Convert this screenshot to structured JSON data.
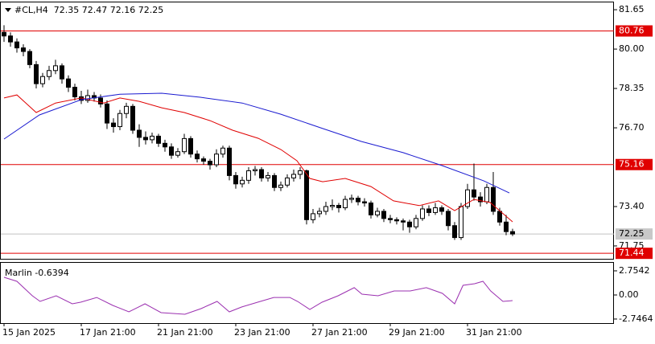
{
  "chart_data": {
    "type": "candlestick",
    "title": "#CL,H4  72.35 72.47 72.16 72.25",
    "xlim": [
      -0.625,
      94.75
    ],
    "ylim": [
      71.21,
      81.99
    ],
    "yticks": [
      81.65,
      {
        "value": 80,
        "label": "80.00"
      },
      78.35,
      {
        "value": 76.7,
        "label": "76.70"
      },
      {
        "value": 73.4,
        "label": "73.40"
      },
      71.75
    ],
    "xticks": [
      {
        "value": 0,
        "label": "15 Jan 2025"
      },
      {
        "value": 12,
        "label": "17 Jan 21:00"
      },
      {
        "value": 24,
        "label": "21 Jan 21:00"
      },
      {
        "value": 36,
        "label": "23 Jan 21:00"
      },
      {
        "value": 48,
        "label": "27 Jan 21:00"
      },
      {
        "value": 60,
        "label": "29 Jan 21:00"
      },
      {
        "value": 72,
        "label": "31 Jan 21:00"
      }
    ],
    "levels": [
      80.76,
      75.16,
      71.44
    ],
    "level_color": "#e00000",
    "last_price": 72.25,
    "candles": [
      [
        80.7,
        81.0,
        80.3,
        80.55
      ],
      [
        80.55,
        80.7,
        80.1,
        80.3
      ],
      [
        80.3,
        80.45,
        79.85,
        80.05
      ],
      [
        80.05,
        80.2,
        79.7,
        79.9
      ],
      [
        79.9,
        80.0,
        79.2,
        79.35
      ],
      [
        79.35,
        79.5,
        78.35,
        78.55
      ],
      [
        78.55,
        79.0,
        78.4,
        78.85
      ],
      [
        78.85,
        79.3,
        78.7,
        79.1
      ],
      [
        79.1,
        79.55,
        78.95,
        79.3
      ],
      [
        79.3,
        79.4,
        78.55,
        78.75
      ],
      [
        78.75,
        78.9,
        78.2,
        78.4
      ],
      [
        78.4,
        78.55,
        77.85,
        78.0
      ],
      [
        78.0,
        78.25,
        77.7,
        77.85
      ],
      [
        77.85,
        78.3,
        77.75,
        78.05
      ],
      [
        78.05,
        78.2,
        77.8,
        77.95
      ],
      [
        77.95,
        78.1,
        77.55,
        77.7
      ],
      [
        77.7,
        77.85,
        76.65,
        76.9
      ],
      [
        76.9,
        77.1,
        76.5,
        76.75
      ],
      [
        76.75,
        77.45,
        76.6,
        77.3
      ],
      [
        77.3,
        77.75,
        77.1,
        77.6
      ],
      [
        77.6,
        77.7,
        76.45,
        76.6
      ],
      [
        76.6,
        76.85,
        75.9,
        76.3
      ],
      [
        76.3,
        76.55,
        76.0,
        76.2
      ],
      [
        76.2,
        76.5,
        76.05,
        76.35
      ],
      [
        76.35,
        76.45,
        75.9,
        76.05
      ],
      [
        76.05,
        76.2,
        75.7,
        75.9
      ],
      [
        75.9,
        76.05,
        75.4,
        75.55
      ],
      [
        75.55,
        75.85,
        75.45,
        75.7
      ],
      [
        75.7,
        76.45,
        75.6,
        76.25
      ],
      [
        76.25,
        76.35,
        75.45,
        75.6
      ],
      [
        75.6,
        75.75,
        75.25,
        75.4
      ],
      [
        75.4,
        75.5,
        75.15,
        75.3
      ],
      [
        75.3,
        75.4,
        74.95,
        75.15
      ],
      [
        75.15,
        75.8,
        75.05,
        75.6
      ],
      [
        75.6,
        75.95,
        75.45,
        75.85
      ],
      [
        75.85,
        75.95,
        74.5,
        74.7
      ],
      [
        74.7,
        74.85,
        74.15,
        74.35
      ],
      [
        74.35,
        74.65,
        74.2,
        74.5
      ],
      [
        74.5,
        75.05,
        74.35,
        74.9
      ],
      [
        74.9,
        75.1,
        74.7,
        74.95
      ],
      [
        74.95,
        75.05,
        74.45,
        74.6
      ],
      [
        74.6,
        74.85,
        74.45,
        74.7
      ],
      [
        74.7,
        74.8,
        74.05,
        74.2
      ],
      [
        74.2,
        74.45,
        74.05,
        74.3
      ],
      [
        74.3,
        74.75,
        74.2,
        74.6
      ],
      [
        74.6,
        74.95,
        74.45,
        74.75
      ],
      [
        74.75,
        75.05,
        74.55,
        74.9
      ],
      [
        74.9,
        74.95,
        72.65,
        72.85
      ],
      [
        72.85,
        73.3,
        72.7,
        73.1
      ],
      [
        73.1,
        73.35,
        72.95,
        73.2
      ],
      [
        73.2,
        73.6,
        73.05,
        73.4
      ],
      [
        73.4,
        73.7,
        73.25,
        73.45
      ],
      [
        73.45,
        73.55,
        73.15,
        73.35
      ],
      [
        73.35,
        73.85,
        73.25,
        73.7
      ],
      [
        73.7,
        73.9,
        73.55,
        73.75
      ],
      [
        73.75,
        73.85,
        73.45,
        73.6
      ],
      [
        73.6,
        73.75,
        73.4,
        73.55
      ],
      [
        73.55,
        73.65,
        72.9,
        73.05
      ],
      [
        73.05,
        73.35,
        72.95,
        73.2
      ],
      [
        73.2,
        73.3,
        72.75,
        72.9
      ],
      [
        72.9,
        73.05,
        72.7,
        72.85
      ],
      [
        72.85,
        72.95,
        72.65,
        72.8
      ],
      [
        72.8,
        72.9,
        72.4,
        72.75
      ],
      [
        72.75,
        72.85,
        72.3,
        72.55
      ],
      [
        72.55,
        73.05,
        72.45,
        72.9
      ],
      [
        72.9,
        73.45,
        72.8,
        73.3
      ],
      [
        73.3,
        73.45,
        73.0,
        73.15
      ],
      [
        73.15,
        73.55,
        73.05,
        73.35
      ],
      [
        73.35,
        73.45,
        73.05,
        73.2
      ],
      [
        73.2,
        73.3,
        72.4,
        72.6
      ],
      [
        72.6,
        72.75,
        72.0,
        72.1
      ],
      [
        72.1,
        73.55,
        72.0,
        73.4
      ],
      [
        73.4,
        74.35,
        73.3,
        74.1
      ],
      [
        74.1,
        75.2,
        73.65,
        73.8
      ],
      [
        73.8,
        74.0,
        73.4,
        73.6
      ],
      [
        73.6,
        74.35,
        73.5,
        74.2
      ],
      [
        74.2,
        74.85,
        73.05,
        73.2
      ],
      [
        73.2,
        73.35,
        72.6,
        72.75
      ],
      [
        72.75,
        73.05,
        72.2,
        72.35
      ],
      [
        72.35,
        72.47,
        72.16,
        72.25
      ]
    ],
    "lines": [
      {
        "color": "#e00000",
        "x": [
          0,
          2,
          5,
          8,
          12,
          15.5,
          18,
          21,
          24.5,
          28,
          32,
          35.5,
          39.5,
          43,
          45.5,
          47.5,
          49.5,
          53,
          57,
          60.5,
          64.5,
          67.5,
          70,
          73,
          75.5,
          79
        ],
        "values": [
          77.95,
          78.08,
          77.34,
          77.74,
          77.95,
          77.74,
          77.95,
          77.81,
          77.54,
          77.34,
          77.0,
          76.6,
          76.26,
          75.79,
          75.32,
          74.58,
          74.44,
          74.58,
          74.24,
          73.64,
          73.44,
          73.64,
          73.23,
          73.7,
          73.57,
          72.76
        ]
      },
      {
        "color": "#1a1ad0",
        "x": [
          0,
          5.5,
          12,
          18,
          24.5,
          30.5,
          37,
          43,
          49.5,
          55.5,
          62,
          68,
          74.5,
          78.5
        ],
        "values": [
          76.23,
          77.24,
          77.88,
          78.11,
          78.15,
          77.98,
          77.74,
          77.27,
          76.67,
          76.13,
          75.66,
          75.12,
          74.48,
          73.97
        ]
      }
    ],
    "oscillator": {
      "label": "Marlin -0.6394",
      "color": "#9b30b0",
      "ylim": [
        -3.21,
        3.76
      ],
      "yticks": [
        2.7542,
        {
          "value": 0,
          "label": "0.00"
        },
        -2.7464
      ],
      "x": [
        0,
        2,
        4.4,
        5.6,
        8.1,
        10.6,
        11.9,
        14.4,
        16.9,
        19.4,
        21.9,
        24.4,
        28.1,
        30.6,
        33.1,
        35,
        36.9,
        39.4,
        41.9,
        44.4,
        45.6,
        47.5,
        49.4,
        51.9,
        54.4,
        55.6,
        58.1,
        60.6,
        63.1,
        65.6,
        68.1,
        70,
        71.3,
        73.1,
        74.4,
        75.6,
        77.5,
        79
      ],
      "values": [
        2.02,
        1.56,
        -0.09,
        -0.73,
        -0.09,
        -1.01,
        -0.83,
        -0.28,
        -1.19,
        -1.93,
        -1.01,
        -2.02,
        -2.2,
        -1.56,
        -0.73,
        -1.93,
        -1.38,
        -0.83,
        -0.28,
        -0.28,
        -0.73,
        -1.65,
        -0.83,
        -0.09,
        0.83,
        0.09,
        -0.09,
        0.46,
        0.46,
        0.83,
        0.18,
        -1.01,
        1.1,
        1.28,
        1.56,
        0.46,
        -0.73,
        -0.6394
      ]
    }
  }
}
